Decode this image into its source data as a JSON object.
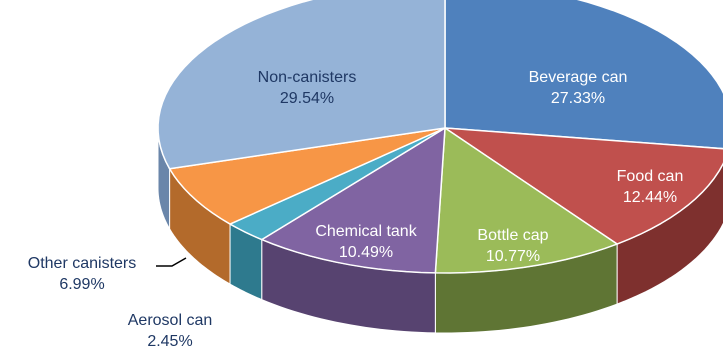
{
  "chart_data": {
    "type": "pie",
    "title": "",
    "slices": [
      {
        "label": "Beverage can",
        "value": 27.33,
        "value_text": "27.33%",
        "color": "#4F81BD",
        "side": "#3A6496",
        "text_color": "#ffffff"
      },
      {
        "label": "Food can",
        "value": 12.44,
        "value_text": "12.44%",
        "color": "#C0504D",
        "side": "#7E302E",
        "text_color": "#ffffff"
      },
      {
        "label": "Bottle cap",
        "value": 10.77,
        "value_text": "10.77%",
        "color": "#9BBB59",
        "side": "#5F7534",
        "text_color": "#ffffff"
      },
      {
        "label": "Chemical tank",
        "value": 10.49,
        "value_text": "10.49%",
        "color": "#8064A2",
        "side": "#574370",
        "text_color": "#ffffff"
      },
      {
        "label": "Aerosol can",
        "value": 2.45,
        "value_text": "2.45%",
        "color": "#4BACC6",
        "side": "#2E7A8E",
        "text_color": "#1F3864"
      },
      {
        "label": "Other canisters",
        "value": 6.99,
        "value_text": "6.99%",
        "color": "#F79646",
        "side": "#B36A2B",
        "text_color": "#1F3864"
      },
      {
        "label": "Non-canisters",
        "value": 29.54,
        "value_text": "29.54%",
        "color": "#95B3D7",
        "side": "#6A86AA",
        "text_color": "#1F3864"
      }
    ]
  }
}
